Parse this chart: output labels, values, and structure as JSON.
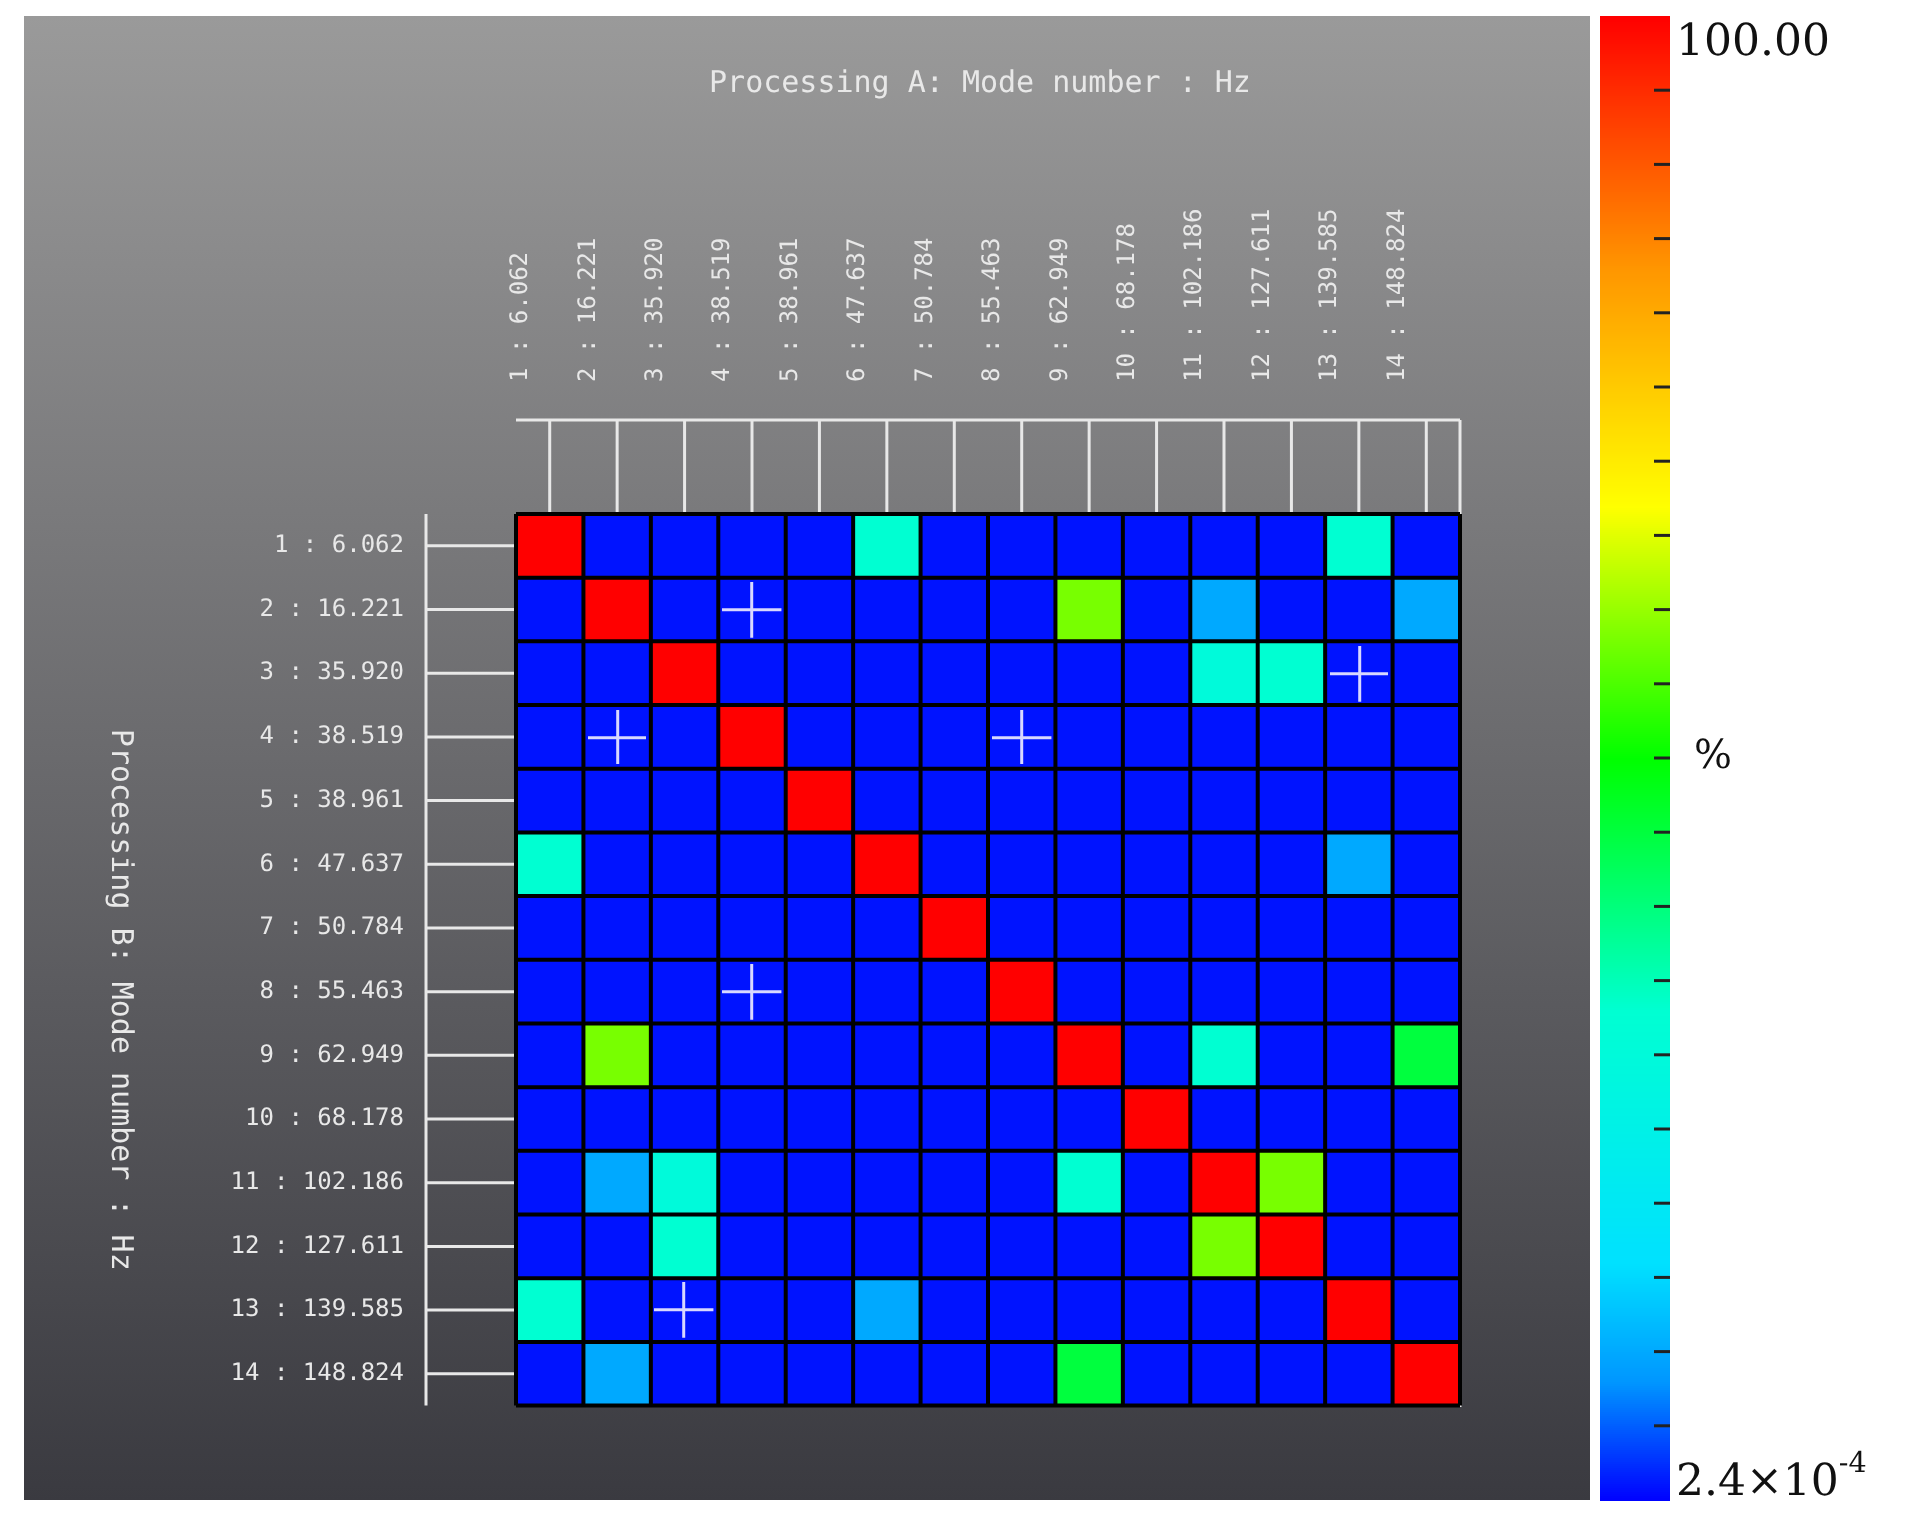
{
  "chart_data": {
    "type": "heatmap",
    "title": "Processing A: Mode number : Hz",
    "ylabel": "Processing B: Mode number : Hz",
    "clabel": "%",
    "categories": [
      "1 : 6.062",
      "2 : 16.221",
      "3 : 35.920",
      "4 : 38.519",
      "5 : 38.961",
      "6 : 47.637",
      "7 : 50.784",
      "8 : 55.463",
      "9 : 62.949",
      "10 : 68.178",
      "11 : 102.186",
      "12 : 127.611",
      "13 : 139.585",
      "14 : 148.824"
    ],
    "y_categories": [
      "1 : 6.062",
      "2 : 16.221",
      "3 : 35.920",
      "4 : 38.519",
      "5 : 38.961",
      "6 : 47.637",
      "7 : 50.784",
      "8 : 55.463",
      "9 : 62.949",
      "10 : 68.178",
      "11 : 102.186",
      "12 : 127.611",
      "13 : 139.585",
      "14 : 148.824"
    ],
    "cells": [
      [
        100,
        1,
        1,
        1,
        1,
        33,
        1,
        1,
        1,
        1,
        1,
        1,
        33,
        1
      ],
      [
        1,
        100,
        1,
        1,
        1,
        1,
        1,
        1,
        58,
        1,
        10,
        1,
        1,
        10
      ],
      [
        1,
        1,
        100,
        1,
        1,
        1,
        1,
        1,
        1,
        1,
        30,
        33,
        1,
        1
      ],
      [
        1,
        1,
        1,
        100,
        1,
        1,
        1,
        1,
        1,
        1,
        1,
        1,
        1,
        1
      ],
      [
        1,
        1,
        1,
        1,
        100,
        1,
        1,
        1,
        1,
        1,
        1,
        1,
        1,
        1
      ],
      [
        33,
        1,
        1,
        1,
        1,
        100,
        1,
        1,
        1,
        1,
        1,
        1,
        10,
        1
      ],
      [
        1,
        1,
        1,
        1,
        1,
        1,
        100,
        1,
        1,
        1,
        1,
        1,
        1,
        1
      ],
      [
        1,
        1,
        1,
        1,
        1,
        1,
        1,
        100,
        1,
        1,
        1,
        1,
        1,
        1
      ],
      [
        1,
        58,
        1,
        1,
        1,
        1,
        1,
        1,
        100,
        1,
        33,
        1,
        1,
        45
      ],
      [
        1,
        1,
        1,
        1,
        1,
        1,
        1,
        1,
        1,
        100,
        1,
        1,
        1,
        1
      ],
      [
        1,
        10,
        30,
        1,
        1,
        1,
        1,
        1,
        33,
        1,
        100,
        58,
        1,
        1
      ],
      [
        1,
        1,
        33,
        1,
        1,
        1,
        1,
        1,
        1,
        1,
        58,
        100,
        1,
        1
      ],
      [
        33,
        1,
        1,
        1,
        1,
        10,
        1,
        1,
        1,
        1,
        1,
        1,
        100,
        1
      ],
      [
        1,
        10,
        1,
        1,
        1,
        1,
        1,
        1,
        45,
        1,
        1,
        1,
        1,
        100
      ]
    ],
    "grid": true,
    "clim": [
      0.00024,
      100
    ],
    "cticks": [
      {
        "value": 0.00024,
        "label": "2.4×10$^{-4}$"
      },
      {
        "value": 5,
        "label": null
      },
      {
        "value": 10,
        "label": null
      },
      {
        "value": 15,
        "label": null
      },
      {
        "value": 20,
        "label": null
      },
      {
        "value": 25,
        "label": null
      },
      {
        "value": 30,
        "label": null
      },
      {
        "value": 35,
        "label": null
      },
      {
        "value": 40,
        "label": null
      },
      {
        "value": 45,
        "label": null
      },
      {
        "value": 50,
        "label": null
      },
      {
        "value": 55,
        "label": null
      },
      {
        "value": 60,
        "label": null
      },
      {
        "value": 65,
        "label": null
      },
      {
        "value": 70,
        "label": null
      },
      {
        "value": 75,
        "label": null
      },
      {
        "value": 80,
        "label": null
      },
      {
        "value": 85,
        "label": null
      },
      {
        "value": 90,
        "label": null
      },
      {
        "value": 95,
        "label": null
      },
      {
        "value": 100,
        "label": "100.00"
      }
    ]
  }
}
